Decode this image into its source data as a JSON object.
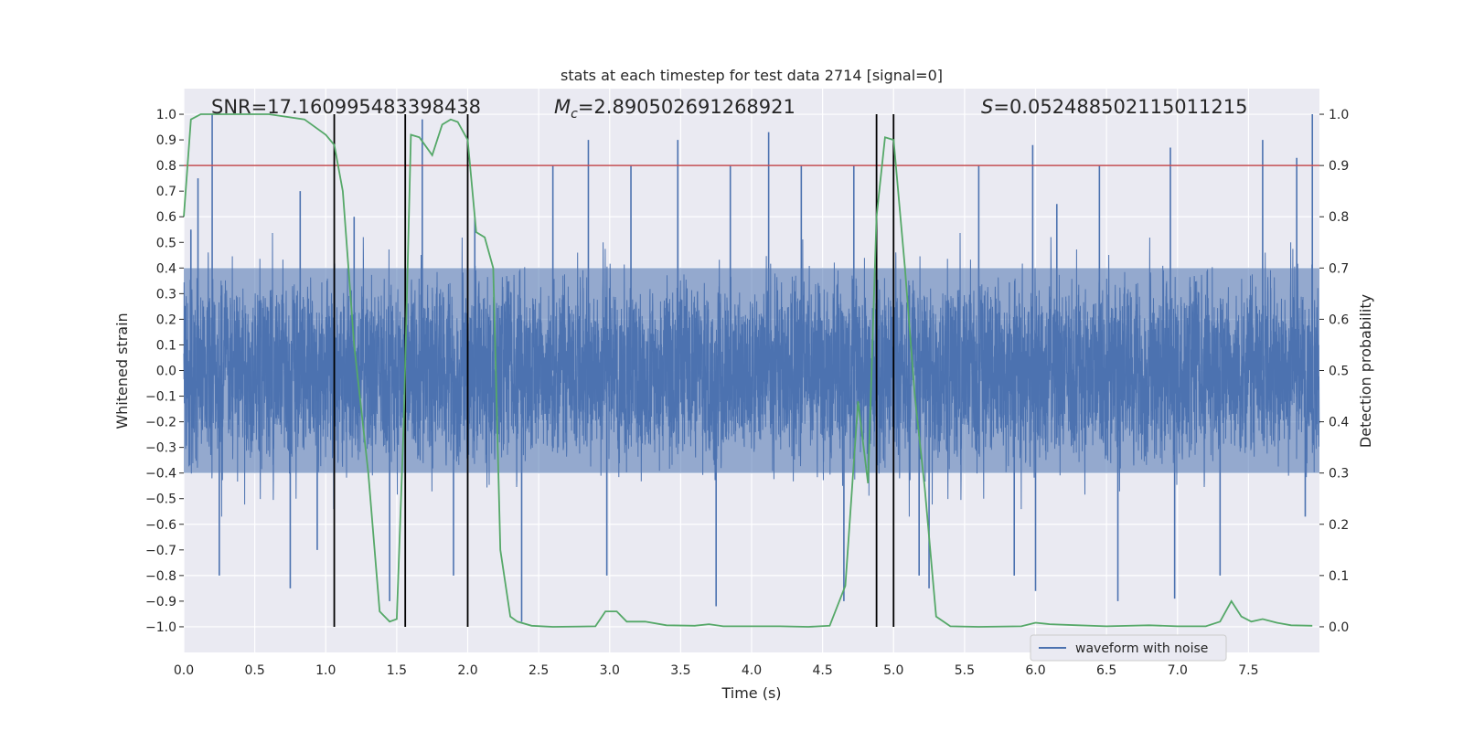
{
  "chart_data": {
    "type": "line",
    "title": "stats at each timestep for test data 2714 [signal=0]",
    "xlabel": "Time (s)",
    "ylabel_left": "Whitened strain",
    "ylabel_right": "Detection probability",
    "xlim": [
      0,
      8
    ],
    "ylim_left": [
      -1.1,
      1.1
    ],
    "ylim_right": [
      -0.05,
      1.05
    ],
    "grid": true,
    "x_ticks": [
      0.0,
      0.5,
      1.0,
      1.5,
      2.0,
      2.5,
      3.0,
      3.5,
      4.0,
      4.5,
      5.0,
      5.5,
      6.0,
      6.5,
      7.0,
      7.5
    ],
    "x_tick_labels": [
      "0.0",
      "0.5",
      "1.0",
      "1.5",
      "2.0",
      "2.5",
      "3.0",
      "3.5",
      "4.0",
      "4.5",
      "5.0",
      "5.5",
      "6.0",
      "6.5",
      "7.0",
      "7.5"
    ],
    "y_left_ticks": [
      1.0,
      0.9,
      0.8,
      0.7,
      0.6,
      0.5,
      0.4,
      0.3,
      0.2,
      0.1,
      0.0,
      -0.1,
      -0.2,
      -0.3,
      -0.4,
      -0.5,
      -0.6,
      -0.7,
      -0.8,
      -0.9,
      -1.0
    ],
    "y_left_tick_labels": [
      "1.0",
      "0.9",
      "0.8",
      "0.7",
      "0.6",
      "0.5",
      "0.4",
      "0.3",
      "0.2",
      "0.1",
      "0.0",
      "−0.1",
      "−0.2",
      "−0.3",
      "−0.4",
      "−0.5",
      "−0.6",
      "−0.7",
      "−0.8",
      "−0.9",
      "−1.0"
    ],
    "y_right_ticks": [
      1.0,
      0.9,
      0.8,
      0.7,
      0.6,
      0.5,
      0.4,
      0.3,
      0.2,
      0.1,
      0.0
    ],
    "y_right_tick_labels": [
      "1.0",
      "0.9",
      "0.8",
      "0.7",
      "0.6",
      "0.5",
      "0.4",
      "0.3",
      "0.2",
      "0.1",
      "0.0"
    ],
    "annotations": {
      "snr": "SNR=17.160995483398438",
      "mc_symbol": "M",
      "mc_subscript": "c",
      "mc_value": "=2.890502691268921",
      "s_symbol": "S",
      "s_value": "=0.052488502115011215"
    },
    "threshold": {
      "axis": "left",
      "value": 0.8,
      "color": "#c44e52"
    },
    "vertical_lines": {
      "x": [
        1.06,
        1.56,
        2.0,
        4.88,
        5.0
      ],
      "ymin": -1.0,
      "ymax": 1.0,
      "color": "#000000"
    },
    "series": [
      {
        "name": "waveform with noise",
        "axis": "left",
        "color": "#4c72b0",
        "kind": "noise",
        "x_range": [
          0,
          8
        ],
        "sample_rate": 1024,
        "core_amplitude": 0.4,
        "spike_peaks": [
          {
            "x": 0.05,
            "y": 0.55
          },
          {
            "x": 0.1,
            "y": 0.75
          },
          {
            "x": 0.2,
            "y": 1.0
          },
          {
            "x": 0.25,
            "y": -0.8
          },
          {
            "x": 0.75,
            "y": -0.85
          },
          {
            "x": 0.82,
            "y": 0.7
          },
          {
            "x": 0.94,
            "y": -0.7
          },
          {
            "x": 1.2,
            "y": 0.6
          },
          {
            "x": 1.45,
            "y": -0.9
          },
          {
            "x": 1.68,
            "y": 0.98
          },
          {
            "x": 1.9,
            "y": -0.8
          },
          {
            "x": 2.05,
            "y": 0.6
          },
          {
            "x": 2.38,
            "y": -0.98
          },
          {
            "x": 2.6,
            "y": 0.8
          },
          {
            "x": 2.85,
            "y": 0.9
          },
          {
            "x": 2.98,
            "y": -0.8
          },
          {
            "x": 3.15,
            "y": 0.8
          },
          {
            "x": 3.48,
            "y": 0.9
          },
          {
            "x": 3.75,
            "y": -0.92
          },
          {
            "x": 3.85,
            "y": 0.8
          },
          {
            "x": 4.12,
            "y": 0.93
          },
          {
            "x": 4.35,
            "y": 0.8
          },
          {
            "x": 4.65,
            "y": -0.9
          },
          {
            "x": 4.72,
            "y": 0.8
          },
          {
            "x": 5.18,
            "y": -0.8
          },
          {
            "x": 5.25,
            "y": -0.85
          },
          {
            "x": 5.6,
            "y": 0.8
          },
          {
            "x": 5.85,
            "y": -0.8
          },
          {
            "x": 5.98,
            "y": 0.88
          },
          {
            "x": 6.0,
            "y": -0.86
          },
          {
            "x": 6.15,
            "y": 0.65
          },
          {
            "x": 6.45,
            "y": 0.8
          },
          {
            "x": 6.58,
            "y": -0.9
          },
          {
            "x": 6.95,
            "y": 0.87
          },
          {
            "x": 6.98,
            "y": -0.89
          },
          {
            "x": 7.3,
            "y": -0.8
          },
          {
            "x": 7.6,
            "y": 0.9
          },
          {
            "x": 7.84,
            "y": 0.83
          },
          {
            "x": 7.95,
            "y": 1.0
          },
          {
            "x": 7.9,
            "y": -0.57
          }
        ]
      },
      {
        "name": "detection probability",
        "axis": "right",
        "color": "#55a868",
        "kind": "line",
        "x": [
          0.0,
          0.05,
          0.12,
          0.2,
          0.4,
          0.6,
          0.85,
          1.0,
          1.06,
          1.12,
          1.2,
          1.3,
          1.38,
          1.45,
          1.5,
          1.55,
          1.6,
          1.66,
          1.75,
          1.82,
          1.88,
          1.93,
          2.0,
          2.06,
          2.12,
          2.18,
          2.23,
          2.3,
          2.35,
          2.45,
          2.6,
          2.9,
          2.97,
          3.05,
          3.12,
          3.25,
          3.4,
          3.6,
          3.7,
          3.8,
          4.0,
          4.2,
          4.4,
          4.55,
          4.66,
          4.75,
          4.82,
          4.88,
          4.94,
          5.0,
          5.08,
          5.15,
          5.22,
          5.3,
          5.4,
          5.6,
          5.9,
          6.0,
          6.1,
          6.3,
          6.5,
          6.8,
          7.0,
          7.2,
          7.3,
          7.38,
          7.45,
          7.52,
          7.6,
          7.7,
          7.8,
          7.95
        ],
        "values": [
          0.8,
          0.99,
          1.0,
          1.0,
          1.0,
          1.0,
          0.99,
          0.96,
          0.94,
          0.85,
          0.55,
          0.3,
          0.03,
          0.01,
          0.015,
          0.4,
          0.96,
          0.955,
          0.92,
          0.98,
          0.99,
          0.985,
          0.95,
          0.77,
          0.76,
          0.7,
          0.15,
          0.02,
          0.01,
          0.002,
          0.0,
          0.001,
          0.03,
          0.03,
          0.01,
          0.01,
          0.003,
          0.002,
          0.005,
          0.001,
          0.001,
          0.001,
          0.0,
          0.002,
          0.08,
          0.44,
          0.28,
          0.8,
          0.955,
          0.95,
          0.7,
          0.45,
          0.27,
          0.02,
          0.001,
          0.0,
          0.001,
          0.008,
          0.005,
          0.003,
          0.001,
          0.003,
          0.001,
          0.001,
          0.01,
          0.05,
          0.02,
          0.01,
          0.015,
          0.008,
          0.003,
          0.002
        ]
      }
    ],
    "legend": {
      "location": "lower-right",
      "entries": [
        "waveform with noise"
      ]
    }
  },
  "colors": {
    "plot_background": "#eaeaf2",
    "grid": "#ffffff",
    "text": "#262626",
    "legend_background": "#eaeaf2",
    "legend_border": "#cccccc"
  }
}
